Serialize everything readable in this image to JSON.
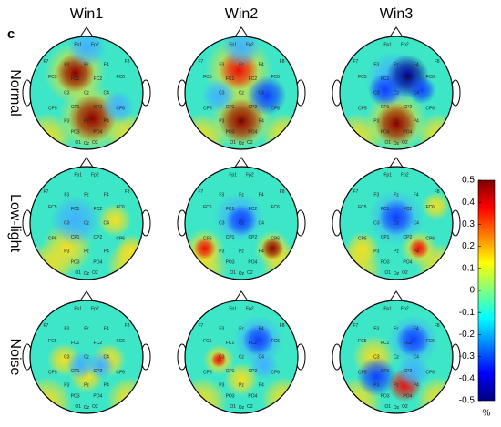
{
  "panel_label": "c",
  "columns": [
    "Win1",
    "Win2",
    "Win3"
  ],
  "rows": [
    "Normal",
    "Low-light",
    "Noise"
  ],
  "electrodes": [
    "Fp1",
    "Fp2",
    "F7",
    "F3",
    "Fz",
    "F4",
    "F8",
    "FC5",
    "FC1",
    "FC2",
    "FC6",
    "C3",
    "Cz",
    "C4",
    "CP5",
    "CP1",
    "CP2",
    "CP6",
    "P3",
    "Pz",
    "P4",
    "PO3",
    "PO4",
    "O1",
    "Oz",
    "O2"
  ],
  "colorbar": {
    "lim": [
      -0.5,
      0.5
    ],
    "ticks": [
      0.5,
      0.4,
      0.3,
      0.2,
      0.1,
      0,
      -0.1,
      -0.2,
      -0.3,
      -0.4,
      -0.5
    ],
    "unit": "%"
  }
}
